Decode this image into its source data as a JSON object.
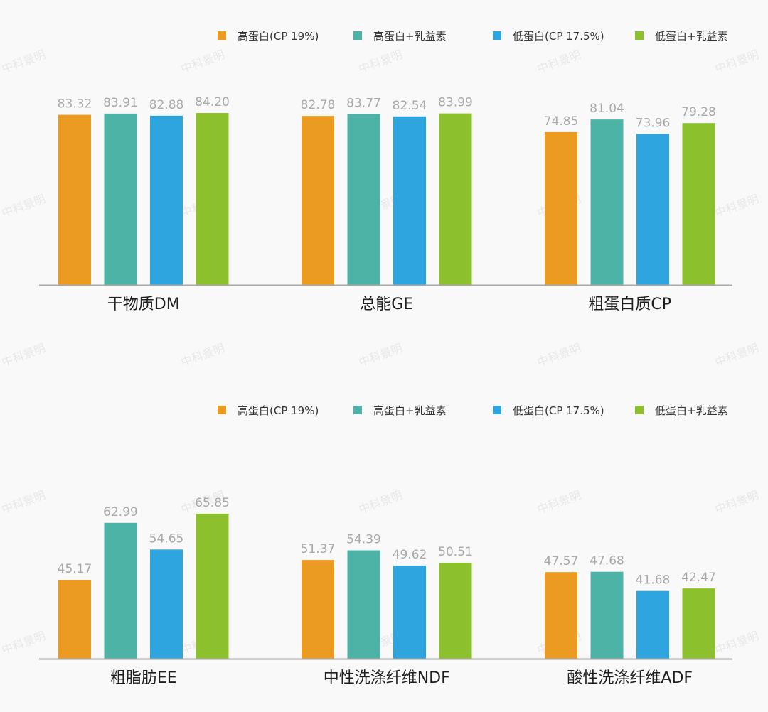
{
  "watermark": "中科景明",
  "colors": [
    "#ec9b22",
    "#4db3a6",
    "#2ea5df",
    "#8cc12d"
  ],
  "chart_data": [
    {
      "type": "bar",
      "legend_position": "top-right",
      "series": [
        {
          "name": "高蛋白(CP 19%)",
          "values": [
            83.32,
            82.78,
            74.85
          ]
        },
        {
          "name": "高蛋白+乳益素",
          "values": [
            83.91,
            83.77,
            81.04
          ]
        },
        {
          "name": "低蛋白(CP 17.5%)",
          "values": [
            82.88,
            82.54,
            73.96
          ]
        },
        {
          "name": "低蛋白+乳益素",
          "values": [
            84.2,
            83.99,
            79.28
          ]
        }
      ],
      "categories": [
        "干物质DM",
        "总能GE",
        "粗蛋白质CP"
      ],
      "value_labels": [
        [
          "83.32",
          "82.78",
          "74.85"
        ],
        [
          "83.91",
          "83.77",
          "81.04"
        ],
        [
          "82.88",
          "82.54",
          "73.96"
        ],
        [
          "84.20",
          "83.99",
          "79.28"
        ]
      ]
    },
    {
      "type": "bar",
      "legend_position": "top-right",
      "series": [
        {
          "name": "高蛋白(CP 19%)",
          "values": [
            45.17,
            51.37,
            47.57
          ]
        },
        {
          "name": "高蛋白+乳益素",
          "values": [
            62.99,
            54.39,
            47.68
          ]
        },
        {
          "name": "低蛋白(CP 17.5%)",
          "values": [
            54.65,
            49.62,
            41.68
          ]
        },
        {
          "name": "低蛋白+乳益素",
          "values": [
            65.85,
            50.51,
            42.47
          ]
        }
      ],
      "categories": [
        "粗脂肪EE",
        "中性洗涤纤维NDF",
        "酸性洗涤纤维ADF"
      ],
      "value_labels": [
        [
          "45.17",
          "51.37",
          "47.57"
        ],
        [
          "62.99",
          "54.39",
          "47.68"
        ],
        [
          "54.65",
          "49.62",
          "41.68"
        ],
        [
          "65.85",
          "50.51",
          "42.47"
        ]
      ]
    }
  ]
}
